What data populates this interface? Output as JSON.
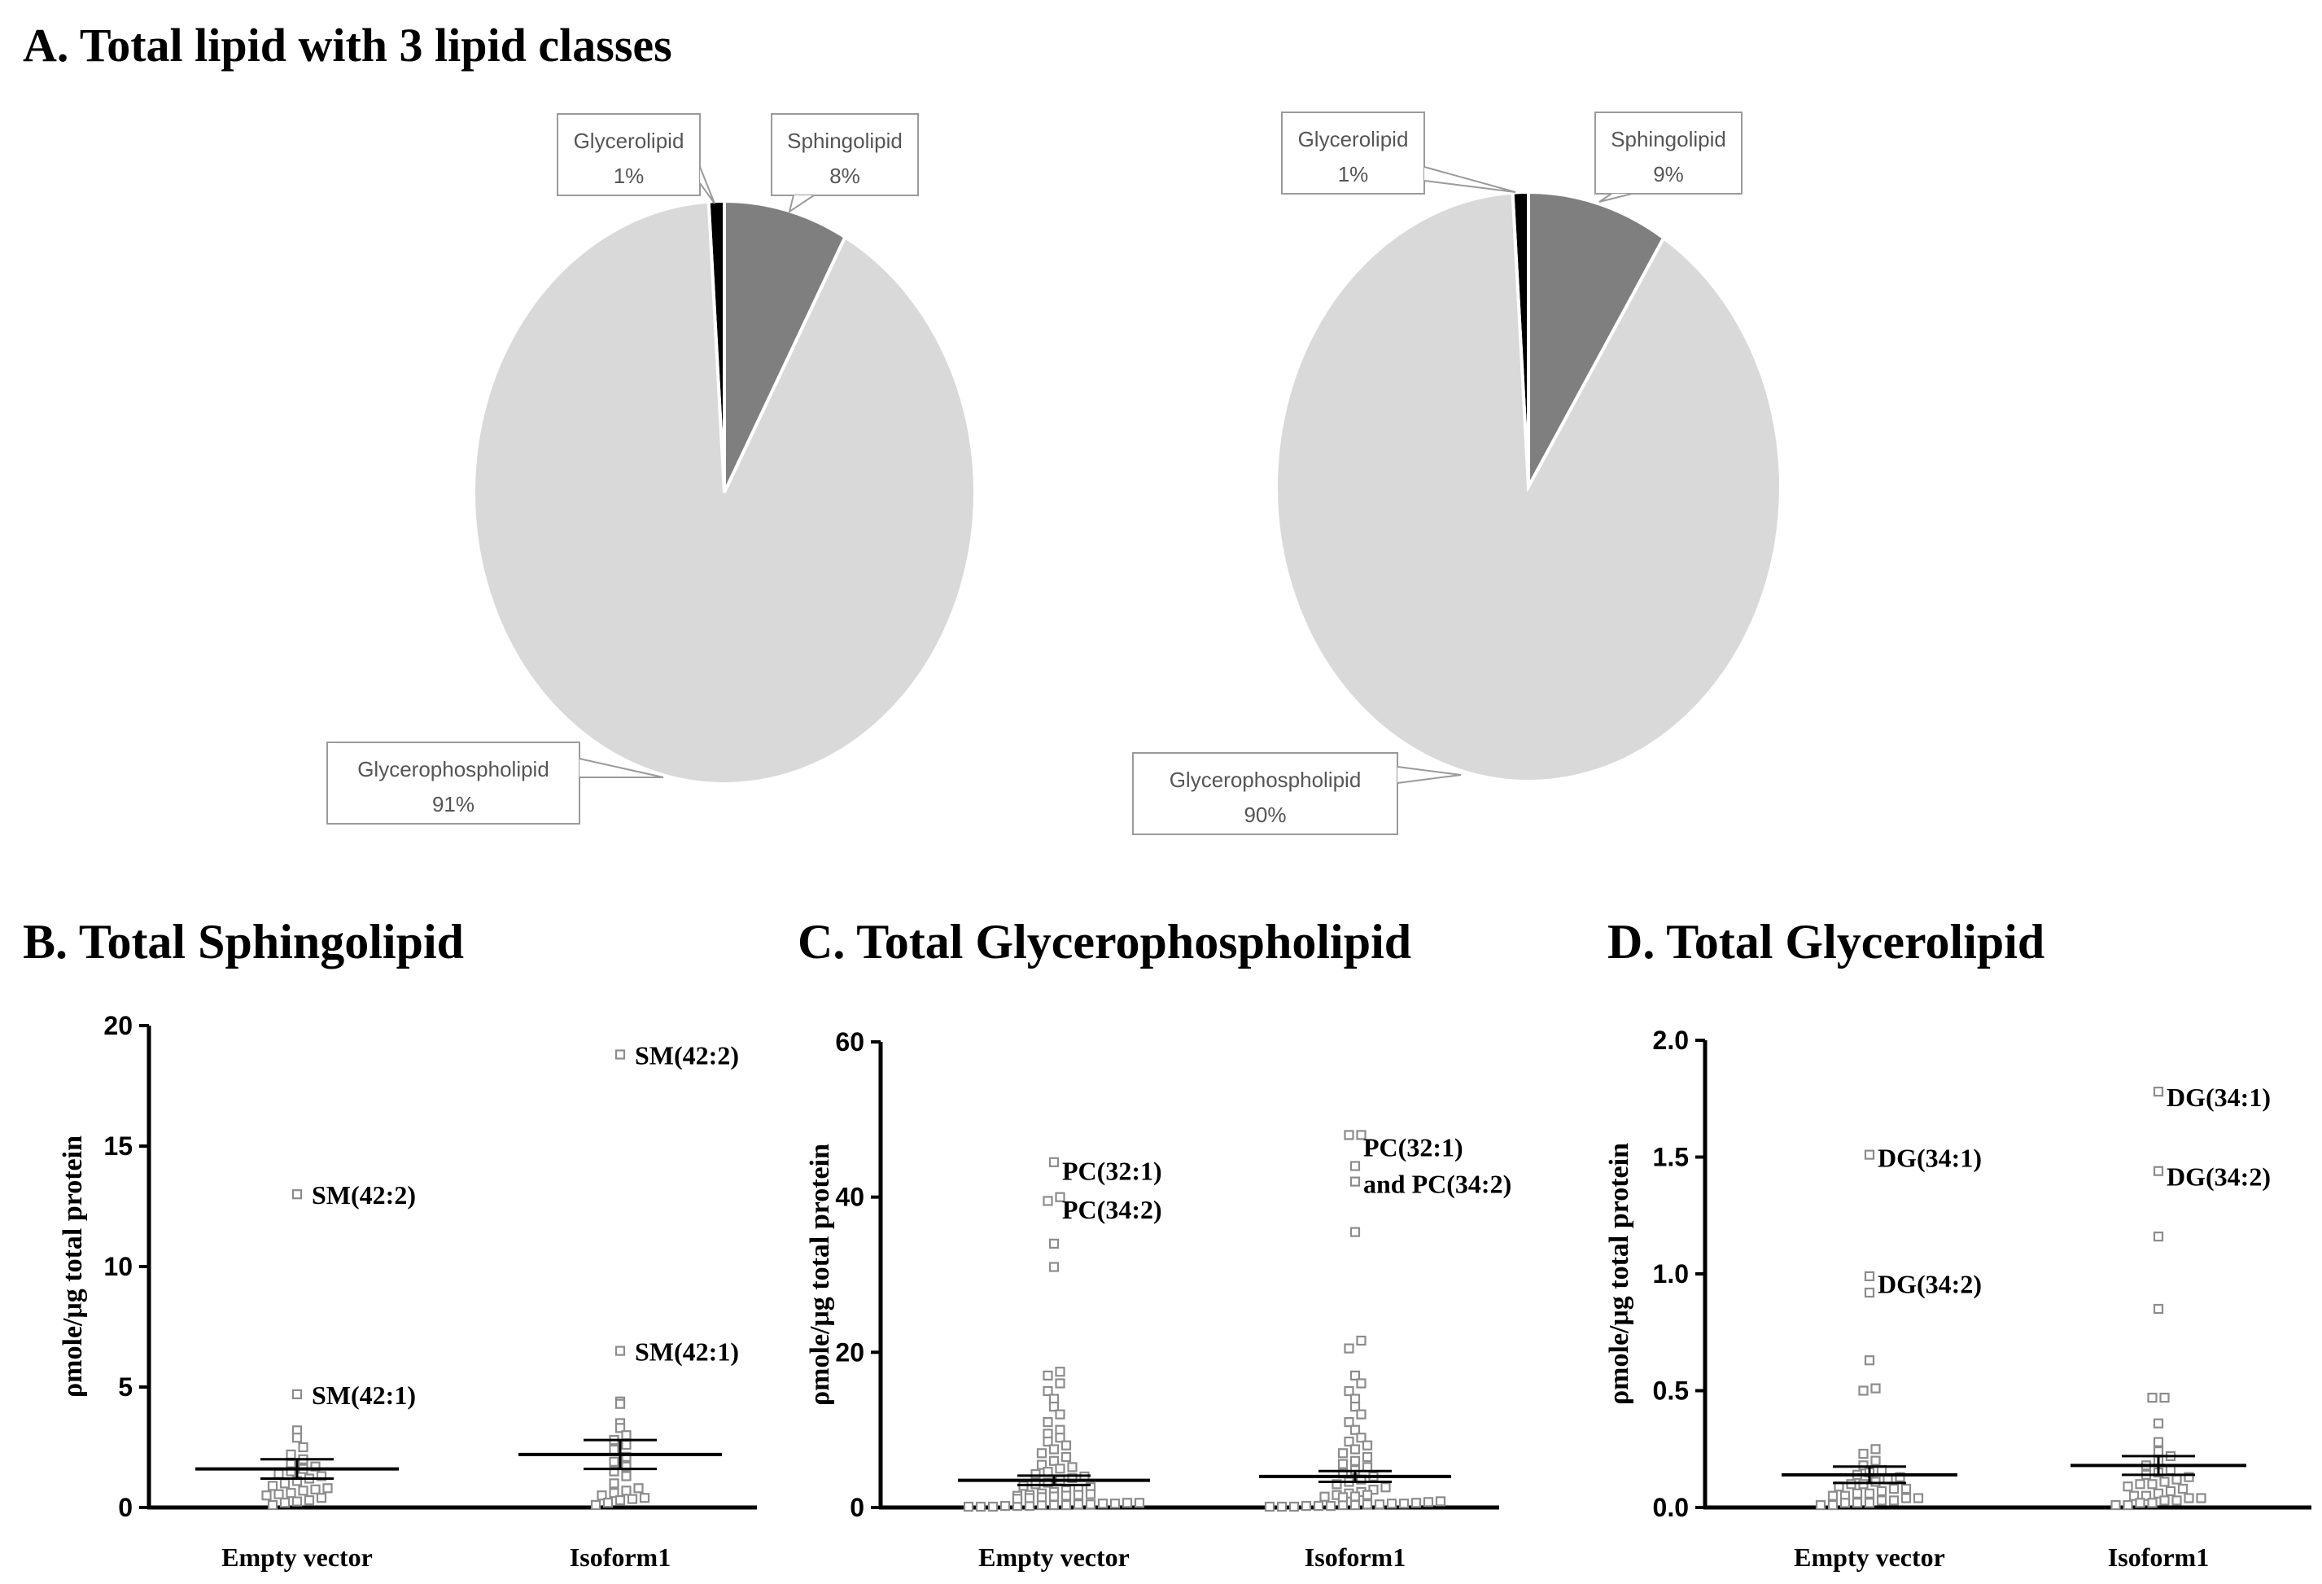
{
  "figure": {
    "panel_a_title": "A. Total lipid with 3 lipid classes",
    "panel_b_title": "B. Total Sphingolipid",
    "panel_c_title": "C. Total Glycerophospholipid",
    "panel_d_title": "D. Total Glycerolipid"
  },
  "colors": {
    "glycerophospholipid": "#d9d9d9",
    "sphingolipid": "#7f7f7f",
    "glycerolipid": "#000000",
    "marker": "#8c8c8c"
  },
  "chart_data": [
    {
      "type": "pie",
      "id": "pie-empty-vector",
      "slices": [
        {
          "label": "Glycerolipid",
          "value": 1,
          "display": "1%"
        },
        {
          "label": "Sphingolipid",
          "value": 8,
          "display": "8%"
        },
        {
          "label": "Glycerophospholipid",
          "value": 91,
          "display": "91%"
        }
      ]
    },
    {
      "type": "pie",
      "id": "pie-isoform1",
      "slices": [
        {
          "label": "Glycerolipid",
          "value": 1,
          "display": "1%"
        },
        {
          "label": "Sphingolipid",
          "value": 9,
          "display": "9%"
        },
        {
          "label": "Glycerophospholipid",
          "value": 90,
          "display": "90%"
        }
      ]
    },
    {
      "type": "scatter",
      "id": "sphingolipid",
      "ylabel": "ρmole/μg total protein",
      "ylim": [
        0,
        20
      ],
      "yticks": [
        "0",
        "5",
        "10",
        "15",
        "20"
      ],
      "categories": [
        "Empty vector",
        "Isoform1"
      ],
      "groups": [
        {
          "name": "Empty vector",
          "mean": 1.6,
          "sem": 0.4,
          "values": [
            0.1,
            0.2,
            0.25,
            0.3,
            0.4,
            0.5,
            0.55,
            0.6,
            0.7,
            0.75,
            0.8,
            0.9,
            1.0,
            1.1,
            1.2,
            1.3,
            1.4,
            1.5,
            1.6,
            1.7,
            1.8,
            2.0,
            2.2,
            2.5,
            2.9,
            3.2,
            4.7,
            13.0
          ],
          "annotations": [
            {
              "text": "SM(42:2)",
              "value": 13.0
            },
            {
              "text": "SM(42:1)",
              "value": 4.7
            }
          ]
        },
        {
          "name": "Isoform1",
          "mean": 2.2,
          "sem": 0.6,
          "values": [
            0.1,
            0.2,
            0.3,
            0.35,
            0.4,
            0.5,
            0.6,
            0.7,
            0.8,
            1.0,
            1.3,
            1.5,
            1.7,
            1.9,
            2.1,
            2.4,
            2.6,
            2.8,
            3.0,
            3.3,
            3.5,
            4.3,
            4.4,
            6.5,
            18.8
          ],
          "annotations": [
            {
              "text": "SM(42:2)",
              "value": 18.8
            },
            {
              "text": "SM(42:1)",
              "value": 6.5
            }
          ]
        }
      ]
    },
    {
      "type": "scatter",
      "id": "glycerophospholipid",
      "ylabel": "ρmole/μg total protein",
      "ylim": [
        0,
        60
      ],
      "yticks": [
        "0",
        "20",
        "40",
        "60"
      ],
      "categories": [
        "Empty vector",
        "Isoform1"
      ],
      "groups": [
        {
          "name": "Empty vector",
          "mean": 3.5,
          "sem": 0.6,
          "values": [
            0.1,
            0.1,
            0.1,
            0.2,
            0.2,
            0.2,
            0.3,
            0.3,
            0.3,
            0.4,
            0.4,
            0.5,
            0.5,
            0.6,
            0.6,
            0.7,
            0.8,
            0.9,
            1.0,
            1.1,
            1.2,
            1.3,
            1.5,
            1.6,
            1.8,
            2.0,
            2.2,
            2.4,
            2.6,
            2.8,
            3.0,
            3.2,
            3.5,
            3.8,
            4.0,
            4.3,
            4.6,
            5.0,
            5.2,
            5.5,
            6.0,
            6.5,
            7.0,
            7.5,
            8.0,
            8.5,
            9.0,
            9.5,
            10.0,
            11.0,
            12.0,
            13.0,
            14.0,
            15.0,
            16.0,
            17.0,
            17.5,
            31.0,
            34.0,
            39.5,
            40.0,
            44.5
          ],
          "annotations": [
            {
              "text": "PC(32:1)",
              "value": 43.5
            },
            {
              "text": "PC(34:2)",
              "value": 38.5
            }
          ]
        },
        {
          "name": "Isoform1",
          "mean": 4.0,
          "sem": 0.7,
          "values": [
            0.1,
            0.1,
            0.1,
            0.2,
            0.2,
            0.2,
            0.3,
            0.3,
            0.4,
            0.4,
            0.5,
            0.5,
            0.6,
            0.7,
            0.8,
            0.9,
            1.0,
            1.2,
            1.4,
            1.6,
            1.8,
            2.0,
            2.3,
            2.6,
            3.0,
            3.3,
            3.6,
            4.0,
            4.4,
            4.8,
            5.2,
            5.6,
            6.0,
            6.5,
            7.0,
            7.5,
            8.0,
            8.5,
            9.0,
            10.0,
            11.0,
            12.0,
            13.0,
            14.0,
            15.0,
            16.0,
            17.0,
            20.5,
            21.5,
            35.5,
            42.0,
            44.0,
            48.0,
            48.0
          ],
          "annotations": [
            {
              "text": "PC(32:1)",
              "value": 46.5
            },
            {
              "text": "and PC(34:2)",
              "value": 41.8
            }
          ]
        }
      ]
    },
    {
      "type": "scatter",
      "id": "glycerolipid",
      "ylabel": "ρmole/μg total protein",
      "ylim": [
        0,
        2.0
      ],
      "yticks": [
        "0.0",
        "0.5",
        "1.0",
        "1.5",
        "2.0"
      ],
      "categories": [
        "Empty vector",
        "Isoform1"
      ],
      "groups": [
        {
          "name": "Empty vector",
          "mean": 0.14,
          "sem": 0.035,
          "values": [
            0.01,
            0.01,
            0.02,
            0.02,
            0.02,
            0.03,
            0.03,
            0.04,
            0.04,
            0.05,
            0.05,
            0.06,
            0.06,
            0.07,
            0.08,
            0.08,
            0.09,
            0.1,
            0.1,
            0.11,
            0.12,
            0.13,
            0.14,
            0.15,
            0.16,
            0.18,
            0.2,
            0.23,
            0.25,
            0.5,
            0.51,
            0.63,
            0.92,
            0.99,
            1.51
          ],
          "annotations": [
            {
              "text": "DG(34:1)",
              "value": 1.5
            },
            {
              "text": "DG(34:2)",
              "value": 0.96
            }
          ]
        },
        {
          "name": "Isoform1",
          "mean": 0.18,
          "sem": 0.04,
          "values": [
            0.01,
            0.01,
            0.02,
            0.02,
            0.03,
            0.03,
            0.04,
            0.04,
            0.05,
            0.05,
            0.06,
            0.07,
            0.08,
            0.09,
            0.1,
            0.1,
            0.11,
            0.12,
            0.13,
            0.14,
            0.15,
            0.16,
            0.18,
            0.2,
            0.22,
            0.24,
            0.28,
            0.36,
            0.47,
            0.47,
            0.85,
            1.16,
            1.44,
            1.78
          ],
          "annotations": [
            {
              "text": "DG(34:1)",
              "value": 1.76
            },
            {
              "text": "DG(34:2)",
              "value": 1.42
            }
          ]
        }
      ]
    }
  ]
}
